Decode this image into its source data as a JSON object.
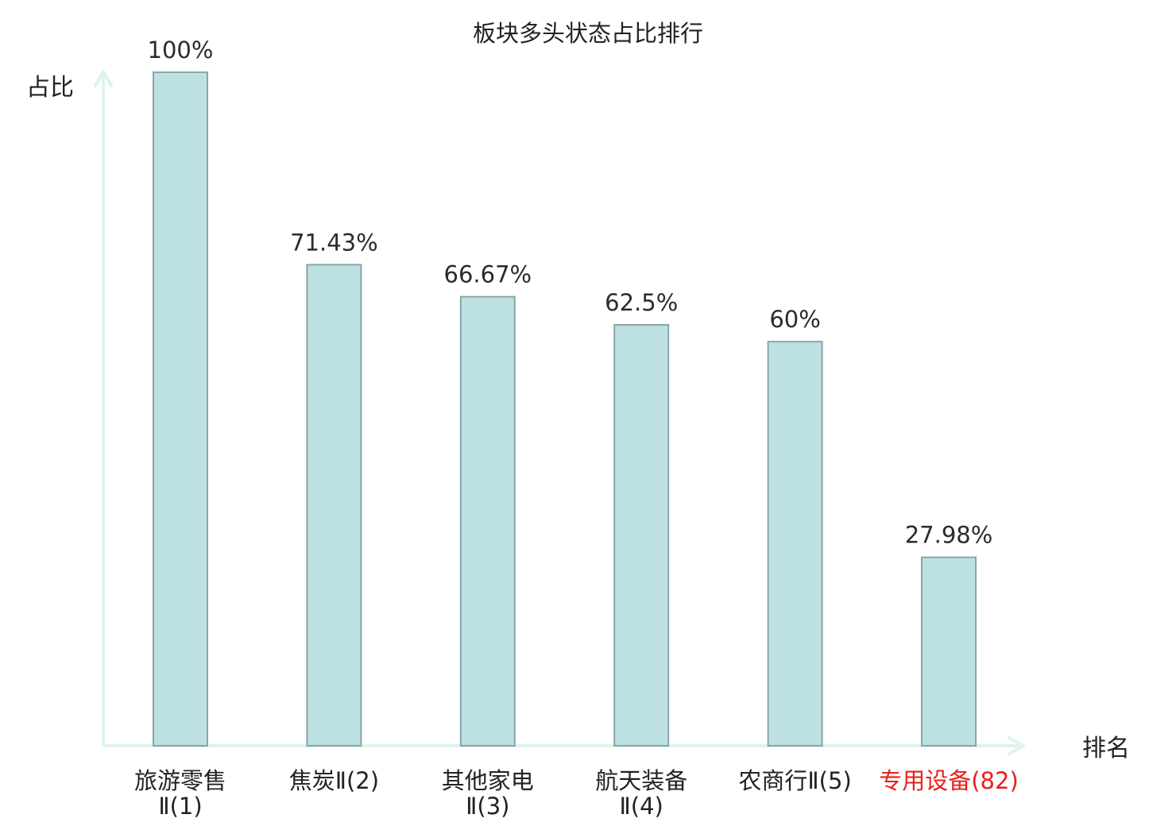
{
  "chart_data": {
    "type": "bar",
    "title": "板块多头状态占比排行",
    "ylabel": "占比",
    "xlabel": "排名",
    "ylim": [
      0,
      100
    ],
    "grid": false,
    "categories": [
      {
        "lines": [
          "旅游零售",
          "Ⅱ(1)"
        ],
        "highlight": false
      },
      {
        "lines": [
          "焦炭Ⅱ(2)"
        ],
        "highlight": false
      },
      {
        "lines": [
          "其他家电",
          "Ⅱ(3)"
        ],
        "highlight": false
      },
      {
        "lines": [
          "航天装备",
          "Ⅱ(4)"
        ],
        "highlight": false
      },
      {
        "lines": [
          "农商行Ⅱ(5)"
        ],
        "highlight": false
      },
      {
        "lines": [
          "专用设备(82)"
        ],
        "highlight": true
      }
    ],
    "values": [
      100,
      71.43,
      66.67,
      62.5,
      60,
      27.98
    ],
    "value_labels": [
      "100%",
      "71.43%",
      "66.67%",
      "62.5%",
      "60%",
      "27.98%"
    ]
  },
  "colors": {
    "bar_fill": "#bde0e3",
    "bar_stroke": "#8aa5a9",
    "axis": "#dff2ef",
    "text": "#222222",
    "highlight": "#e8201b"
  }
}
